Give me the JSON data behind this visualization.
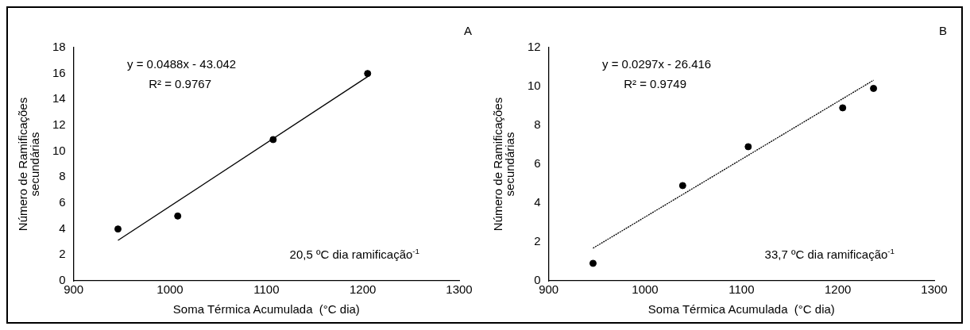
{
  "chart_data": [
    {
      "type": "scatter",
      "title": "A",
      "xlabel": "Soma Térmica Acumulada  (°C dia)",
      "ylabel": "Número de Ramificações secundárias",
      "xlim": [
        900,
        1300
      ],
      "xticks": [
        900,
        1000,
        1100,
        1200,
        1300
      ],
      "ylim": [
        0,
        18
      ],
      "yticks": [
        0,
        2,
        4,
        6,
        8,
        10,
        12,
        14,
        16,
        18
      ],
      "grid": false,
      "annotations": [
        "y = 0.0488x - 43.042",
        "R² = 0.9767",
        "20,5 ºC dia ramificação$^{-1}$"
      ],
      "series": [
        {
          "type": "scatter",
          "color": "#000000",
          "marker": "circle",
          "x": [
            946,
            1008,
            1107,
            1205
          ],
          "values": [
            4,
            5,
            10.9,
            16
          ]
        },
        {
          "type": "line",
          "color": "#000000",
          "marker": "none",
          "line_style": "solid",
          "x": [
            946,
            1205
          ],
          "values": [
            3.12,
            15.76
          ]
        }
      ]
    },
    {
      "type": "scatter",
      "title": "B",
      "xlabel": "Soma Térmica Acumulada  (°C dia)",
      "ylabel": "Número de Ramificações secundárias",
      "xlim": [
        900,
        1300
      ],
      "xticks": [
        900,
        1000,
        1100,
        1200,
        1300
      ],
      "ylim": [
        0,
        12
      ],
      "yticks": [
        0,
        2,
        4,
        6,
        8,
        10,
        12
      ],
      "grid": false,
      "annotations": [
        "y = 0.0297x - 26.416",
        "R² = 0.9749",
        "33,7 ºC dia ramificação$^{-1}$"
      ],
      "series": [
        {
          "type": "scatter",
          "color": "#000000",
          "marker": "circle",
          "x": [
            946,
            1039,
            1107,
            1205,
            1237
          ],
          "values": [
            0.9,
            4.9,
            6.9,
            8.9,
            9.9
          ]
        },
        {
          "type": "line",
          "color": "#000000",
          "marker": "none",
          "line_style": "dotted",
          "x": [
            946,
            1237
          ],
          "values": [
            1.68,
            10.32
          ]
        }
      ]
    }
  ]
}
